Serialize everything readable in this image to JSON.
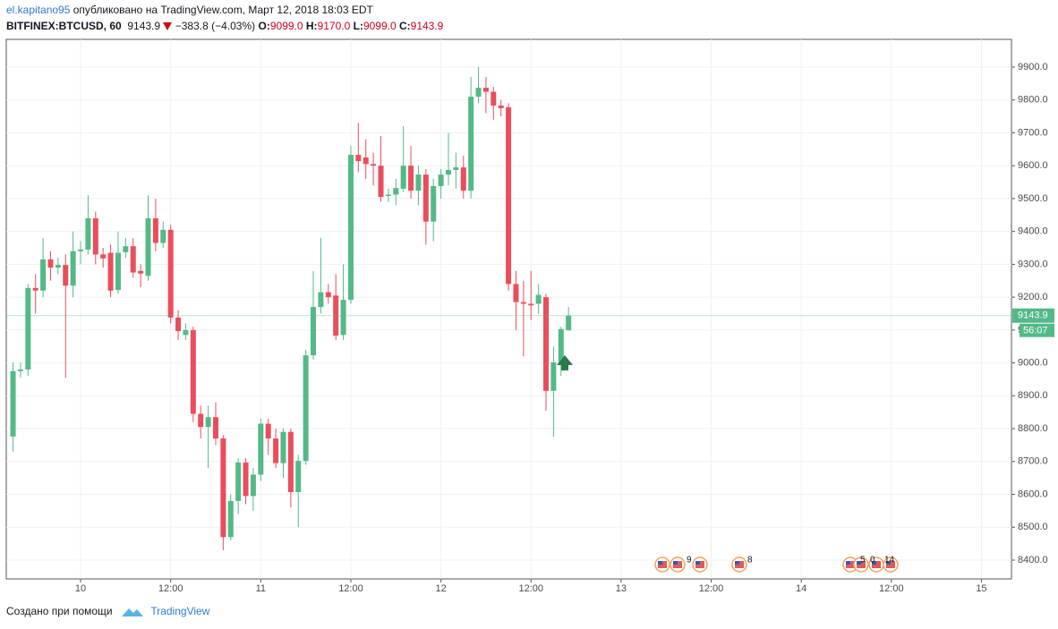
{
  "header": {
    "author": "el.kapitano95",
    "published": "опубликовано на TradingView.com, Март 12, 2018 18:03 EDT",
    "symbol": "BITFINEX:BTCUSD, 60",
    "last": "9143.9",
    "change": "−383.8 (−4.03%)",
    "ohlc": [
      {
        "label": "O:",
        "value": "9099.0"
      },
      {
        "label": "H:",
        "value": "9170.0"
      },
      {
        "label": "L:",
        "value": "9099.0"
      },
      {
        "label": "C:",
        "value": "9143.9"
      }
    ]
  },
  "chart_data": {
    "type": "candlestick",
    "up_color": "#53b987",
    "down_color": "#eb4d5c",
    "grid": true,
    "x": [
      -9,
      -8,
      -7,
      -6,
      -5,
      -4,
      -3,
      -2,
      -1,
      0,
      1,
      2,
      3,
      4,
      5,
      6,
      7,
      8,
      9,
      10,
      11,
      12,
      13,
      14,
      15,
      16,
      17,
      18,
      19,
      20,
      21,
      22,
      23,
      24,
      25,
      26,
      27,
      28,
      29,
      30,
      31,
      32,
      33,
      34,
      35,
      36,
      37,
      38,
      39,
      40,
      41,
      42,
      43,
      44,
      45,
      46,
      47,
      48,
      49,
      50,
      51,
      52,
      53,
      54,
      55,
      56,
      57,
      58,
      59,
      60,
      61,
      62,
      63,
      64,
      65
    ],
    "open": [
      8776,
      8975,
      8980,
      9228,
      9220,
      9315,
      9290,
      9298,
      9235,
      9340,
      9345,
      9440,
      9330,
      9335,
      9222,
      9337,
      9355,
      9280,
      9265,
      9440,
      9365,
      9405,
      9138,
      9085,
      9100,
      8845,
      8805,
      8835,
      8770,
      8470,
      8580,
      8697,
      8595,
      8660,
      8815,
      8770,
      8695,
      8790,
      8607,
      8702,
      9023,
      9170,
      9215,
      9205,
      9085,
      9192,
      9633,
      9625,
      9605,
      9600,
      9508,
      9512,
      9530,
      9600,
      9524,
      9573,
      9430,
      9538,
      9573,
      9587,
      9595,
      9524,
      9810,
      9837,
      9825,
      9783,
      9778,
      9240,
      9185,
      9180,
      9180,
      9200,
      8915,
      9002,
      9099
    ],
    "high": [
      9002,
      9000,
      9240,
      9270,
      9380,
      9340,
      9320,
      9330,
      9400,
      9370,
      9510,
      9460,
      9350,
      9360,
      9400,
      9380,
      9380,
      9300,
      9510,
      9500,
      9430,
      9420,
      9160,
      9120,
      9110,
      8870,
      8870,
      8880,
      8780,
      8600,
      8710,
      8710,
      8680,
      8830,
      8830,
      8800,
      8800,
      8800,
      8720,
      9040,
      9280,
      9380,
      9240,
      9270,
      9300,
      9660,
      9730,
      9680,
      9640,
      9690,
      9530,
      9560,
      9720,
      9660,
      9600,
      9590,
      9560,
      9590,
      9700,
      9640,
      9630,
      9870,
      9900,
      9870,
      9840,
      9800,
      9790,
      9280,
      9250,
      9280,
      9240,
      9210,
      9050,
      9110,
      9170
    ],
    "low": [
      8730,
      8955,
      8960,
      9150,
      9200,
      9250,
      9270,
      8955,
      9200,
      9300,
      9330,
      9300,
      9290,
      9200,
      9210,
      9320,
      9260,
      9230,
      9250,
      9340,
      9350,
      9120,
      9070,
      9070,
      8820,
      8770,
      8680,
      8750,
      8430,
      8460,
      8540,
      8570,
      8550,
      8640,
      8720,
      8680,
      8650,
      8560,
      8500,
      8690,
      9010,
      9150,
      9180,
      9070,
      9070,
      9180,
      9580,
      9560,
      9540,
      9490,
      9490,
      9480,
      9520,
      9500,
      9480,
      9360,
      9370,
      9500,
      9540,
      9530,
      9500,
      9500,
      9790,
      9760,
      9740,
      9750,
      9220,
      9100,
      9020,
      9130,
      9150,
      8855,
      8775,
      8960,
      9099
    ],
    "close": [
      8975,
      8980,
      9228,
      9220,
      9315,
      9290,
      9298,
      9235,
      9340,
      9345,
      9440,
      9330,
      9318,
      9220,
      9335,
      9355,
      9275,
      9272,
      9440,
      9365,
      9405,
      9138,
      9097,
      9100,
      8845,
      8805,
      8835,
      8770,
      8470,
      8580,
      8697,
      8595,
      8660,
      8815,
      8770,
      8695,
      8790,
      8607,
      8702,
      9023,
      9170,
      9215,
      9200,
      9083,
      9192,
      9633,
      9614,
      9605,
      9600,
      9505,
      9512,
      9532,
      9600,
      9524,
      9573,
      9430,
      9538,
      9573,
      9587,
      9595,
      9524,
      9810,
      9837,
      9825,
      9783,
      9775,
      9240,
      9185,
      9180,
      9175,
      9207,
      8915,
      9002,
      9103,
      9143.9
    ],
    "xlim": [
      -9.9,
      124
    ],
    "xticks": [
      {
        "value": 0,
        "label": "10"
      },
      {
        "value": 12,
        "label": "12:00"
      },
      {
        "value": 24,
        "label": "11"
      },
      {
        "value": 36,
        "label": "12:00"
      },
      {
        "value": 48,
        "label": "12"
      },
      {
        "value": 60,
        "label": "12:00"
      },
      {
        "value": 72,
        "label": "13"
      },
      {
        "value": 84,
        "label": "12:00"
      },
      {
        "value": 96,
        "label": "14"
      },
      {
        "value": 108,
        "label": "12:00"
      },
      {
        "value": 120,
        "label": "15"
      }
    ],
    "ylim": [
      8342.8,
      9984.4
    ],
    "yticks": [
      {
        "value": 8400,
        "label": "8400.0"
      },
      {
        "value": 8500,
        "label": "8500.0"
      },
      {
        "value": 8600,
        "label": "8600.0"
      },
      {
        "value": 8700,
        "label": "8700.0"
      },
      {
        "value": 8800,
        "label": "8800.0"
      },
      {
        "value": 8900,
        "label": "8900.0"
      },
      {
        "value": 9000,
        "label": "9000.0"
      },
      {
        "value": 9100,
        "label": "9100.0"
      },
      {
        "value": 9200,
        "label": "9200.0"
      },
      {
        "value": 9300,
        "label": "9300.0"
      },
      {
        "value": 9400,
        "label": "9400.0"
      },
      {
        "value": 9500,
        "label": "9500.0"
      },
      {
        "value": 9600,
        "label": "9600.0"
      },
      {
        "value": 9700,
        "label": "9700.0"
      },
      {
        "value": 9800,
        "label": "9800.0"
      },
      {
        "value": 9900,
        "label": "9900.0"
      }
    ],
    "last_price": 9143.9,
    "countdown": "56:07"
  },
  "events": [
    "9",
    "8",
    "5",
    "0",
    "14"
  ],
  "footer": {
    "text": "Создано при помощи",
    "brand": "TradingView"
  }
}
